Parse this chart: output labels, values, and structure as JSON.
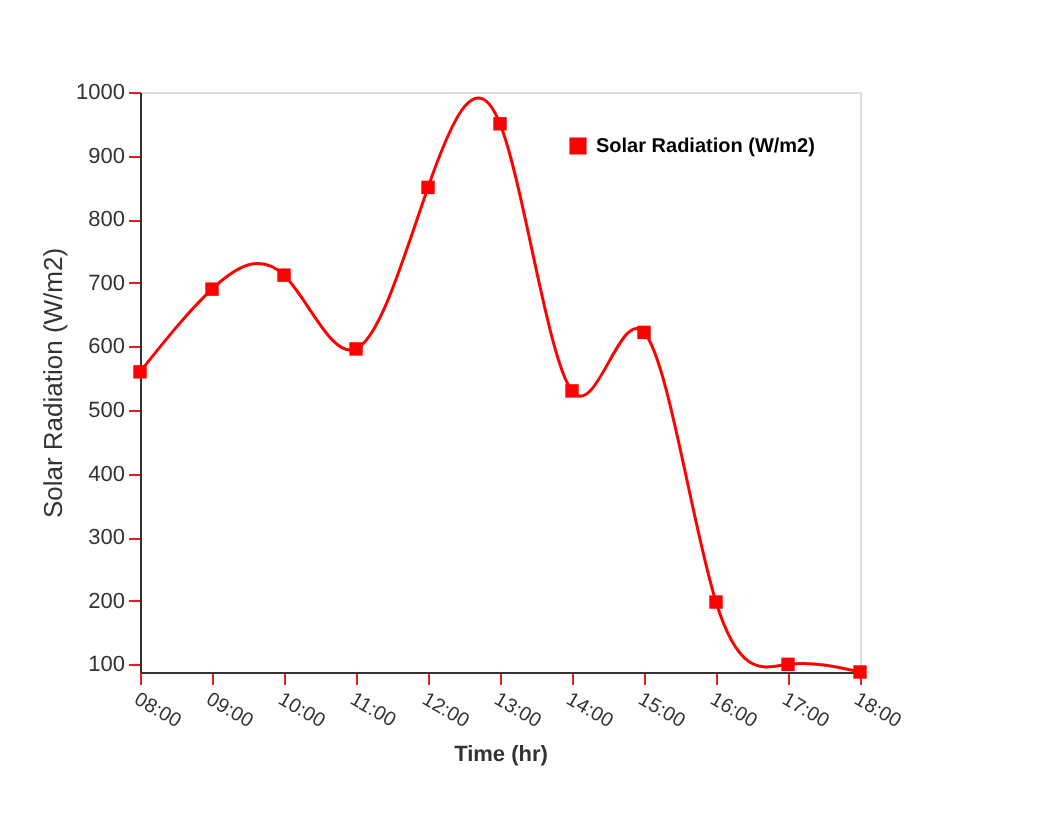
{
  "chart_data": {
    "type": "line",
    "xlabel": "Time (hr)",
    "ylabel": "Solar Radiation (W/m2)",
    "x": [
      8,
      9,
      10,
      11,
      12,
      13,
      14,
      15,
      16,
      17,
      18
    ],
    "series": [
      {
        "name": "Solar Radiation (W/m2)",
        "color": "#ff0000",
        "values": [
          560,
          690,
          712,
          596,
          850,
          950,
          530,
          622,
          198,
          100,
          88
        ]
      }
    ],
    "xlim": [
      8,
      18
    ],
    "xticks": [
      {
        "value": 8,
        "label": "08:00"
      },
      {
        "value": 9,
        "label": "09:00"
      },
      {
        "value": 10,
        "label": "10:00"
      },
      {
        "value": 11,
        "label": "11:00"
      },
      {
        "value": 12,
        "label": "12:00"
      },
      {
        "value": 13,
        "label": "13:00"
      },
      {
        "value": 14,
        "label": "14:00"
      },
      {
        "value": 15,
        "label": "15:00"
      },
      {
        "value": 16,
        "label": "16:00"
      },
      {
        "value": 17,
        "label": "17:00"
      },
      {
        "value": 18,
        "label": "18:00"
      }
    ],
    "ylim": [
      88,
      1000
    ],
    "yticks": [
      100,
      200,
      300,
      400,
      500,
      600,
      700,
      800,
      900,
      1000
    ],
    "marker": "square",
    "line_style": "solid",
    "grid": false,
    "legend": "top right"
  }
}
